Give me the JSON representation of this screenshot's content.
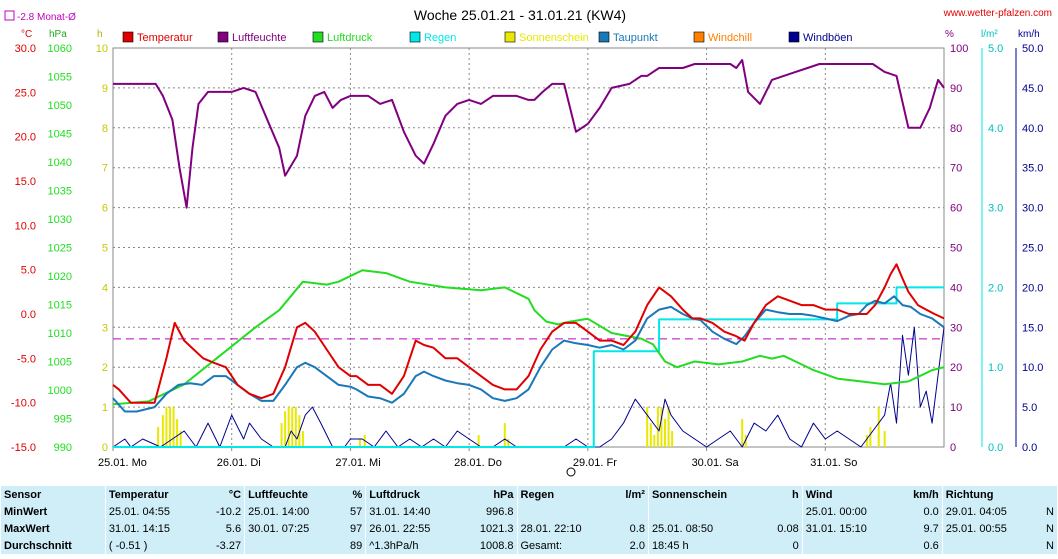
{
  "title": "Woche 25.01.21 - 31.01.21 (KW4)",
  "site": "www.wetter-pfalzen.com",
  "monat_label": "-2.8 Monat-Ø",
  "units": {
    "temp": "°C",
    "press": "hPa",
    "sun": "h",
    "hum": "%",
    "rain": "l/m²",
    "wind": "km/h"
  },
  "legend": [
    {
      "label": "Temperatur",
      "color": "#e00000"
    },
    {
      "label": "Luftfeuchte",
      "color": "#800080"
    },
    {
      "label": "Luftdruck",
      "color": "#22dd22"
    },
    {
      "label": "Regen",
      "color": "#00e8e8"
    },
    {
      "label": "Sonnenschein",
      "color": "#e8e800"
    },
    {
      "label": "Taupunkt",
      "color": "#1a78b8"
    },
    {
      "label": "Windchill",
      "color": "#ff8000"
    },
    {
      "label": "Windböen",
      "color": "#000090"
    }
  ],
  "colors": {
    "temp": "#e00000",
    "hum": "#800080",
    "press": "#22dd22",
    "rain": "#00e8e8",
    "sun": "#e8e800",
    "dew": "#1a78b8",
    "wind": "#000090",
    "monat": "#c000c0",
    "grid": "#888888",
    "statsbg": "#cfeef7"
  },
  "chart_data": {
    "type": "line",
    "title": "Woche 25.01.21 - 31.01.21 (KW4)",
    "x_unit": "days since 25.01. 00:00",
    "xlim": [
      0,
      7
    ],
    "day_labels": [
      "25.01. Mo",
      "26.01. Di",
      "27.01. Mi",
      "28.01. Do",
      "29.01. Fr",
      "30.01. Sa",
      "31.01. So"
    ],
    "axes": {
      "temp": {
        "label": "°C",
        "ylim": [
          -15,
          30
        ],
        "ticks": [
          "-15.0",
          "-10.0",
          "-5.0",
          "0.0",
          "5.0",
          "10.0",
          "15.0",
          "20.0",
          "25.0",
          "30.0"
        ]
      },
      "press": {
        "label": "hPa",
        "ylim": [
          990,
          1060
        ],
        "ticks": [
          "990",
          "995",
          "1000",
          "1005",
          "1010",
          "1015",
          "1020",
          "1025",
          "1030",
          "1035",
          "1040",
          "1045",
          "1050",
          "1055",
          "1060"
        ]
      },
      "sun": {
        "label": "h",
        "ylim": [
          0,
          10
        ],
        "ticks": [
          "0",
          "1",
          "2",
          "3",
          "4",
          "5",
          "6",
          "7",
          "8",
          "9",
          "10"
        ]
      },
      "hum": {
        "label": "%",
        "ylim": [
          0,
          100
        ],
        "ticks": [
          "0",
          "10",
          "20",
          "30",
          "40",
          "50",
          "60",
          "70",
          "80",
          "90",
          "100"
        ]
      },
      "rain": {
        "label": "l/m²",
        "ylim": [
          0,
          5
        ],
        "ticks": [
          "0.0",
          "1.0",
          "2.0",
          "3.0",
          "4.0",
          "5.0"
        ]
      },
      "wind": {
        "label": "km/h",
        "ylim": [
          0,
          50
        ],
        "ticks": [
          "0.0",
          "5.0",
          "10.0",
          "15.0",
          "20.0",
          "25.0",
          "30.0",
          "35.0",
          "40.0",
          "45.0",
          "50.0"
        ]
      }
    },
    "monat_mittel": -2.8,
    "series": [
      {
        "name": "Luftfeuchte",
        "axis": "hum",
        "x": [
          0,
          0.3,
          0.36,
          0.42,
          0.5,
          0.56,
          0.62,
          0.67,
          0.72,
          0.8,
          0.9,
          1.0,
          1.1,
          1.2,
          1.3,
          1.4,
          1.45,
          1.55,
          1.62,
          1.7,
          1.78,
          1.85,
          1.92,
          2.0,
          2.08,
          2.15,
          2.25,
          2.35,
          2.45,
          2.55,
          2.62,
          2.7,
          2.8,
          2.9,
          3.0,
          3.1,
          3.2,
          3.3,
          3.4,
          3.5,
          3.55,
          3.62,
          3.7,
          3.8,
          3.9,
          4.0,
          4.1,
          4.2,
          4.35,
          4.45,
          4.5,
          4.55,
          4.6,
          4.7,
          4.8,
          4.9,
          5.0,
          5.1,
          5.2,
          5.25,
          5.3,
          5.35,
          5.45,
          5.55,
          5.65,
          5.75,
          5.85,
          5.95,
          6.0,
          6.1,
          6.2,
          6.3,
          6.4,
          6.5,
          6.6,
          6.7,
          6.8,
          6.88,
          6.95,
          7.0
        ],
        "values": [
          91,
          91,
          91,
          88,
          82,
          70,
          60,
          75,
          86,
          89,
          89,
          89,
          90,
          89,
          82,
          75,
          68,
          73,
          83,
          88,
          89,
          85,
          87,
          88,
          88,
          88,
          86,
          87,
          79,
          73,
          71,
          76,
          83,
          86,
          87,
          86,
          88,
          88,
          88,
          87,
          87,
          89,
          91,
          91,
          79,
          81,
          85,
          90,
          91,
          93,
          93,
          94,
          95,
          95,
          95,
          96,
          96,
          96,
          96,
          95,
          97,
          89,
          86,
          92,
          93,
          94,
          95,
          96,
          96,
          96,
          96,
          96,
          96,
          94,
          93,
          80,
          80,
          85,
          92,
          90
        ]
      },
      {
        "name": "Luftdruck",
        "axis": "press",
        "x": [
          0,
          0.3,
          0.6,
          0.9,
          1.2,
          1.4,
          1.6,
          1.8,
          1.9,
          2.1,
          2.3,
          2.5,
          2.8,
          3.1,
          3.3,
          3.5,
          3.55,
          3.65,
          3.75,
          3.85,
          4.0,
          4.2,
          4.45,
          4.55,
          4.65,
          4.75,
          4.9,
          5.1,
          5.3,
          5.45,
          5.55,
          5.65,
          5.75,
          5.9,
          6.1,
          6.3,
          6.5,
          6.7,
          6.8,
          6.9,
          7.0
        ],
        "values": [
          997.5,
          998,
          1001,
          1006,
          1011,
          1014,
          1019,
          1018.5,
          1019,
          1021,
          1020.5,
          1019,
          1018,
          1017.5,
          1018,
          1016,
          1014,
          1012,
          1011.5,
          1012,
          1012.5,
          1010,
          1009,
          1008,
          1005,
          1004,
          1005,
          1004.5,
          1005,
          1006,
          1005.5,
          1006,
          1005,
          1003.5,
          1002,
          1001.5,
          1001,
          1001.5,
          1002.5,
          1003.5,
          1004
        ]
      },
      {
        "name": "Temperatur",
        "axis": "temp",
        "x": [
          0,
          0.05,
          0.15,
          0.25,
          0.35,
          0.45,
          0.52,
          0.6,
          0.68,
          0.76,
          0.85,
          0.95,
          1.05,
          1.15,
          1.25,
          1.35,
          1.45,
          1.55,
          1.62,
          1.7,
          1.8,
          1.9,
          2.0,
          2.05,
          2.15,
          2.25,
          2.35,
          2.45,
          2.55,
          2.62,
          2.7,
          2.8,
          2.9,
          3.0,
          3.1,
          3.2,
          3.3,
          3.4,
          3.5,
          3.6,
          3.7,
          3.8,
          3.9,
          4.0,
          4.1,
          4.2,
          4.3,
          4.4,
          4.5,
          4.6,
          4.7,
          4.8,
          4.88,
          4.95,
          5.05,
          5.15,
          5.25,
          5.32,
          5.4,
          5.5,
          5.6,
          5.7,
          5.8,
          5.9,
          6.0,
          6.1,
          6.2,
          6.28,
          6.35,
          6.42,
          6.5,
          6.55,
          6.6,
          6.65,
          6.7,
          6.78,
          6.85,
          6.92,
          7.0
        ],
        "values": [
          -8,
          -8.5,
          -10,
          -10,
          -10,
          -5,
          -1,
          -3,
          -4,
          -5,
          -5.5,
          -6,
          -8,
          -9,
          -9.5,
          -9,
          -6,
          -1.5,
          -1,
          -2,
          -4,
          -6,
          -7,
          -7,
          -8,
          -8,
          -9,
          -7,
          -3,
          -3.5,
          -3.8,
          -5,
          -5,
          -6,
          -7,
          -8,
          -8.5,
          -8.5,
          -7,
          -4,
          -2,
          -1,
          -1,
          -2,
          -3,
          -3,
          -3.5,
          -2,
          1,
          3,
          2,
          0.5,
          -0.5,
          -0.5,
          -1,
          -2,
          -2.5,
          -3,
          -1,
          1,
          2,
          1.5,
          1,
          1,
          0.5,
          0.5,
          0,
          0,
          0,
          1,
          3,
          4.5,
          5.6,
          4,
          2.5,
          1,
          0.5,
          0,
          -0.5
        ]
      },
      {
        "name": "Taupunkt",
        "axis": "temp",
        "x": [
          0,
          0.1,
          0.2,
          0.35,
          0.45,
          0.55,
          0.65,
          0.75,
          0.85,
          0.95,
          1.05,
          1.15,
          1.25,
          1.35,
          1.45,
          1.55,
          1.62,
          1.7,
          1.8,
          1.9,
          2.0,
          2.05,
          2.15,
          2.25,
          2.35,
          2.45,
          2.55,
          2.62,
          2.7,
          2.8,
          2.9,
          3.0,
          3.1,
          3.2,
          3.3,
          3.4,
          3.5,
          3.6,
          3.7,
          3.8,
          3.9,
          4.0,
          4.1,
          4.2,
          4.3,
          4.4,
          4.5,
          4.6,
          4.7,
          4.8,
          4.88,
          4.95,
          5.05,
          5.15,
          5.25,
          5.32,
          5.4,
          5.5,
          5.6,
          5.7,
          5.8,
          5.9,
          6.0,
          6.1,
          6.2,
          6.28,
          6.35,
          6.42,
          6.5,
          6.58,
          6.65,
          6.72,
          6.8,
          6.9,
          7.0
        ],
        "values": [
          -9.5,
          -11,
          -11,
          -10.5,
          -9,
          -8,
          -7.8,
          -8,
          -7,
          -7,
          -8,
          -9,
          -9.8,
          -9.8,
          -8,
          -6,
          -5.5,
          -6,
          -7,
          -8,
          -8.2,
          -8.5,
          -9.3,
          -9.5,
          -10,
          -9,
          -7,
          -6.5,
          -7,
          -7.5,
          -7.8,
          -8,
          -8.5,
          -9.5,
          -9.8,
          -9.5,
          -8.5,
          -6,
          -4,
          -3,
          -3.3,
          -3.5,
          -3.8,
          -3.5,
          -4,
          -3,
          -0.5,
          0.5,
          0.8,
          0,
          -0.5,
          -0.7,
          -2,
          -2.8,
          -3.4,
          -2.5,
          -1,
          0.5,
          0.2,
          0,
          0,
          -0.2,
          -0.5,
          -0.8,
          -0.2,
          0,
          1,
          1.5,
          1.2,
          2,
          1,
          0.8,
          0,
          -0.5,
          -1.5
        ]
      },
      {
        "name": "Regen",
        "axis": "rain",
        "x": [
          0,
          3.95,
          4.05,
          4.55,
          4.6,
          5.6,
          6.05,
          6.1,
          6.3,
          6.55,
          6.6,
          7.0
        ],
        "values": [
          0,
          0,
          1.2,
          1.2,
          1.6,
          1.6,
          1.6,
          1.8,
          1.8,
          1.8,
          2.0,
          2.0
        ]
      },
      {
        "name": "Windböen",
        "axis": "wind",
        "x": [
          0,
          0.1,
          0.15,
          0.25,
          0.4,
          0.5,
          0.6,
          0.7,
          0.8,
          0.9,
          1.0,
          1.1,
          1.15,
          1.25,
          1.35,
          1.45,
          1.5,
          1.55,
          1.62,
          1.68,
          1.75,
          1.85,
          1.95,
          2.0,
          2.1,
          2.2,
          2.3,
          2.4,
          2.5,
          2.6,
          2.7,
          2.8,
          2.9,
          3.0,
          3.1,
          3.2,
          3.3,
          3.4,
          3.5,
          3.6,
          3.7,
          3.8,
          3.9,
          4.0,
          4.1,
          4.2,
          4.3,
          4.4,
          4.5,
          4.6,
          4.65,
          4.7,
          4.8,
          4.9,
          5.0,
          5.1,
          5.2,
          5.3,
          5.4,
          5.5,
          5.6,
          5.7,
          5.8,
          5.9,
          6.0,
          6.1,
          6.2,
          6.3,
          6.4,
          6.5,
          6.55,
          6.6,
          6.65,
          6.7,
          6.75,
          6.8,
          6.85,
          6.9,
          7.0
        ],
        "values": [
          0,
          1,
          0,
          1,
          0,
          1,
          2,
          0,
          3,
          0,
          4,
          1,
          3,
          1,
          0,
          0,
          2,
          1,
          4,
          5,
          3,
          0,
          0,
          1,
          1,
          0,
          2,
          0,
          1,
          0,
          1,
          0,
          2,
          1,
          0,
          0,
          1,
          0,
          0,
          0,
          0,
          0,
          1,
          0,
          0,
          1,
          3,
          6,
          4,
          2,
          6,
          4,
          2,
          1,
          0,
          1,
          2,
          0,
          3,
          2,
          4,
          1,
          0,
          3,
          1,
          2,
          1,
          0,
          2,
          4,
          8,
          3,
          14,
          9,
          15,
          5,
          7,
          3,
          15
        ]
      },
      {
        "name": "Sonnenschein",
        "axis": "sun",
        "type": "bar",
        "x": [
          0.38,
          0.42,
          0.45,
          0.48,
          0.51,
          0.54,
          0.57,
          1.42,
          1.45,
          1.48,
          1.51,
          1.54,
          1.57,
          1.6,
          2.08,
          2.12,
          3.08,
          3.3,
          3.33,
          4.5,
          4.53,
          4.56,
          4.59,
          4.62,
          4.65,
          4.68,
          4.71,
          5.3,
          5.33,
          6.35,
          6.38,
          6.45,
          6.5
        ],
        "values": [
          0.5,
          0.8,
          1.0,
          1.0,
          1.0,
          0.7,
          0.4,
          0.6,
          0.9,
          1.0,
          1.0,
          1.0,
          0.8,
          0.4,
          0.2,
          0.3,
          0.3,
          0.6,
          0.2,
          1.0,
          0.6,
          0.3,
          1.0,
          1.0,
          0.7,
          1.0,
          0.4,
          0.7,
          0.3,
          0.3,
          0.5,
          1.0,
          0.4
        ]
      }
    ]
  },
  "stats": {
    "headers": [
      {
        "name": "Sensor",
        "unit": ""
      },
      {
        "name": "Temperatur",
        "unit": "°C"
      },
      {
        "name": "Luftfeuchte",
        "unit": "%"
      },
      {
        "name": "Luftdruck",
        "unit": "hPa"
      },
      {
        "name": "Regen",
        "unit": "l/m²"
      },
      {
        "name": "Sonnenschein",
        "unit": "h"
      },
      {
        "name": "Wind",
        "unit": "km/h"
      },
      {
        "name": "Richtung",
        "unit": ""
      }
    ],
    "rows": [
      {
        "label": "MinWert",
        "cells": [
          [
            "25.01.  04:55",
            "-10.2"
          ],
          [
            "25.01.  14:00",
            "57"
          ],
          [
            "31.01.  14:40",
            "996.8"
          ],
          [
            "",
            ""
          ],
          [
            "",
            ""
          ],
          [
            "25.01.  00:00",
            "0.0"
          ],
          [
            "29.01.  04:05",
            "N"
          ]
        ]
      },
      {
        "label": "MaxWert",
        "cells": [
          [
            "31.01.  14:15",
            "5.6"
          ],
          [
            "30.01.  07:25",
            "97"
          ],
          [
            "26.01.  22:55",
            "1021.3"
          ],
          [
            "28.01.  22:10",
            "0.8"
          ],
          [
            "25.01.  08:50",
            "0.08"
          ],
          [
            "31.01.  15:10",
            "9.7"
          ],
          [
            "25.01.  00:55",
            "N"
          ]
        ]
      },
      {
        "label": "Durchschnitt",
        "cells": [
          [
            "( -0.51 )",
            "-3.27"
          ],
          [
            "",
            "89"
          ],
          [
            "^1.3hPa/h",
            "1008.8"
          ],
          [
            "Gesamt:",
            "2.0"
          ],
          [
            "18:45 h",
            "0"
          ],
          [
            "",
            "0.6"
          ],
          [
            "",
            "N"
          ]
        ]
      }
    ]
  }
}
